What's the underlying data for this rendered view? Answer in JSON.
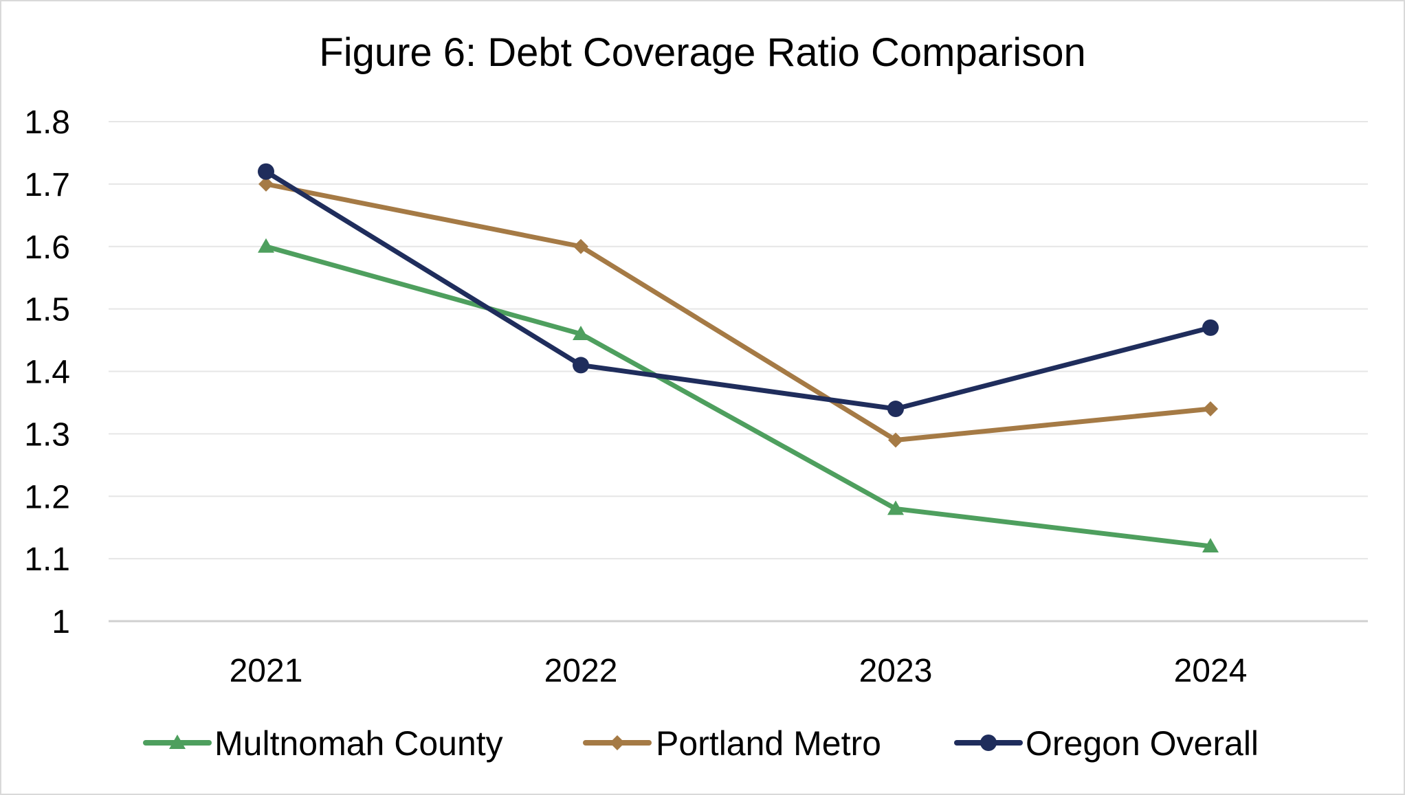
{
  "chart_data": {
    "type": "line",
    "title": "Figure 6: Debt Coverage Ratio Comparison",
    "xlabel": "",
    "ylabel": "",
    "categories": [
      "2021",
      "2022",
      "2023",
      "2024"
    ],
    "ylim": [
      1,
      1.8
    ],
    "yticks": [
      1,
      1.1,
      1.2,
      1.3,
      1.4,
      1.5,
      1.6,
      1.7,
      1.8
    ],
    "ytick_labels": [
      "1",
      "1.1",
      "1.2",
      "1.3",
      "1.4",
      "1.5",
      "1.6",
      "1.7",
      "1.8"
    ],
    "grid": true,
    "legend": "bottom",
    "series": [
      {
        "name": "Multnomah County",
        "values": [
          1.6,
          1.46,
          1.18,
          1.12
        ],
        "color": "#4e9f5e",
        "marker": "triangle"
      },
      {
        "name": "Portland Metro",
        "values": [
          1.7,
          1.6,
          1.29,
          1.34
        ],
        "color": "#a57a45",
        "marker": "diamond"
      },
      {
        "name": "Oregon Overall",
        "values": [
          1.72,
          1.41,
          1.34,
          1.47
        ],
        "color": "#1f2d5c",
        "marker": "circle"
      }
    ]
  }
}
